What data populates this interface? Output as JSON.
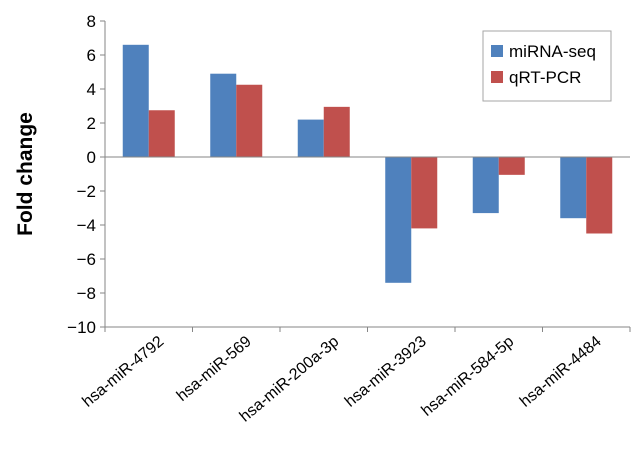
{
  "chart_data": {
    "type": "bar",
    "title": "",
    "xlabel": "",
    "ylabel": "Fold change",
    "ylim": [
      -10,
      8
    ],
    "yticks": [
      8,
      6,
      4,
      2,
      0,
      -2,
      -4,
      -6,
      -8,
      -10
    ],
    "ytick_labels": [
      "8",
      "6",
      "4",
      "2",
      "0",
      "−2",
      "−4",
      "−6",
      "−8",
      "−10"
    ],
    "grid": false,
    "legend_position": "top-right",
    "categories": [
      "hsa-miR-4792",
      "hsa-miR-569",
      "hsa-miR-200a-3p",
      "hsa-miR-3923",
      "hsa-miR-584-5p",
      "hsa-miR-4484"
    ],
    "series": [
      {
        "name": "miRNA-seq",
        "color": "#4F81BD",
        "values": [
          6.6,
          4.9,
          2.2,
          -7.4,
          -3.3,
          -3.6
        ]
      },
      {
        "name": "qRT-PCR",
        "color": "#C0504D",
        "values": [
          2.75,
          4.25,
          2.95,
          -4.2,
          -1.05,
          -4.5
        ]
      }
    ]
  }
}
